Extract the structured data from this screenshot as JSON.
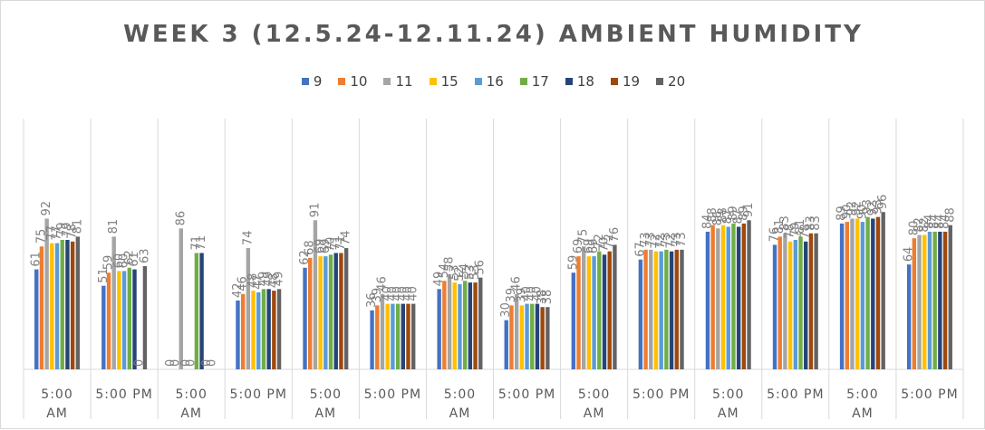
{
  "chart_data": {
    "type": "bar",
    "title": "WEEK 3 (12.5.24-12.11.24)  AMBIENT HUMIDITY",
    "xlabel": "",
    "ylabel": "",
    "ylim": [
      0,
      100
    ],
    "grid": false,
    "legend_position": "top",
    "categories": [
      "5:00 AM",
      "5:00 PM",
      "5:00 AM",
      "5:00 PM",
      "5:00 AM",
      "5:00 PM",
      "5:00 AM",
      "5:00 PM",
      "5:00 AM",
      "5:00 PM",
      "5:00 AM",
      "5:00 PM",
      "5:00 AM",
      "5:00 PM"
    ],
    "series": [
      {
        "name": "9",
        "color": "#4472c4",
        "values": [
          61,
          51,
          0,
          42,
          62,
          36,
          49,
          30,
          59,
          67,
          84,
          76,
          89,
          64
        ]
      },
      {
        "name": "10",
        "color": "#ed7d31",
        "values": [
          75,
          59,
          0,
          46,
          68,
          39,
          54,
          39,
          69,
          73,
          88,
          81,
          90,
          80
        ]
      },
      {
        "name": "11",
        "color": "#a5a5a5",
        "values": [
          92,
          81,
          86,
          74,
          91,
          46,
          58,
          46,
          75,
          73,
          86,
          83,
          92,
          82
        ]
      },
      {
        "name": "15",
        "color": "#ffc000",
        "values": [
          77,
          60,
          0,
          48,
          69,
          40,
          53,
          39,
          69,
          72,
          88,
          78,
          92,
          82
        ]
      },
      {
        "name": "16",
        "color": "#5b9bd5",
        "values": [
          77,
          60,
          0,
          47,
          69,
          40,
          52,
          40,
          69,
          72,
          87,
          79,
          90,
          84
        ]
      },
      {
        "name": "17",
        "color": "#70ad47",
        "values": [
          79,
          62,
          71,
          49,
          70,
          40,
          54,
          40,
          72,
          73,
          89,
          81,
          93,
          84
        ]
      },
      {
        "name": "18",
        "color": "#264478",
        "values": [
          79,
          61,
          71,
          49,
          71,
          40,
          53,
          40,
          70,
          72,
          87,
          78,
          92,
          84
        ]
      },
      {
        "name": "19",
        "color": "#9e480e",
        "values": [
          78,
          0,
          0,
          48,
          71,
          40,
          53,
          38,
          72,
          73,
          89,
          83,
          93,
          84
        ]
      },
      {
        "name": "20",
        "color": "#636363",
        "values": [
          81,
          63,
          0,
          49,
          74,
          40,
          56,
          38,
          76,
          73,
          91,
          83,
          96,
          88
        ]
      }
    ]
  }
}
